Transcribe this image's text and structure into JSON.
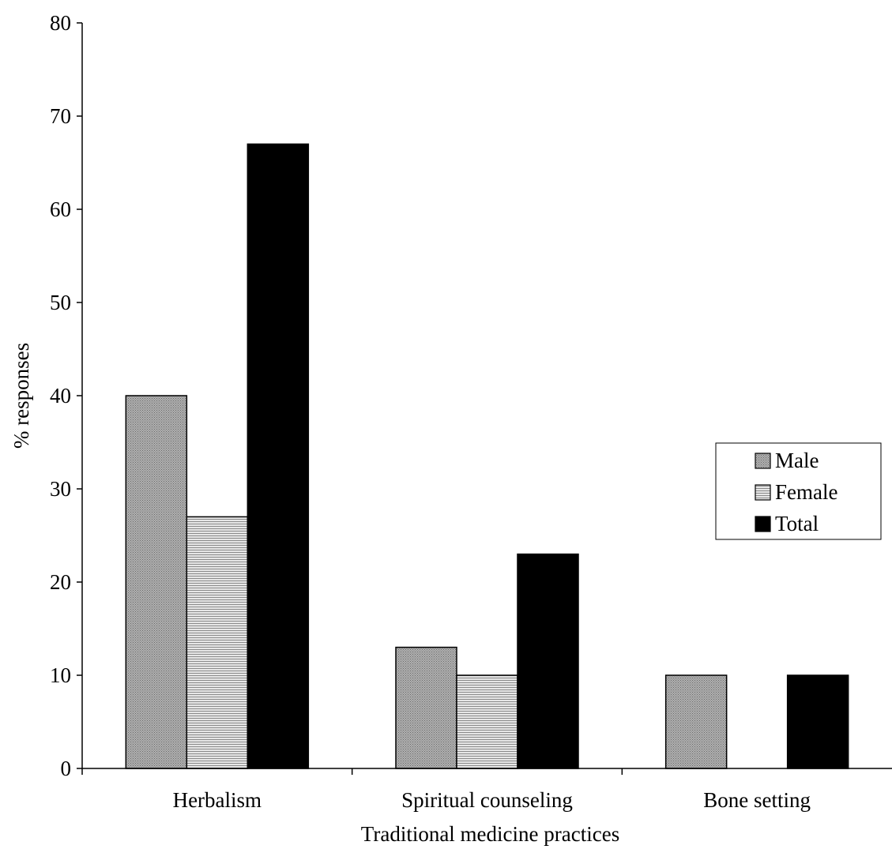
{
  "chart_data": {
    "type": "bar",
    "title": "",
    "xlabel": "Traditional medicine practices",
    "ylabel": "% responses",
    "categories": [
      "Herbalism",
      "Spiritual counseling",
      "Bone setting"
    ],
    "series": [
      {
        "name": "Male",
        "values": [
          40,
          13,
          10
        ],
        "pattern": "dots",
        "color": "#a6a6a6"
      },
      {
        "name": "Female",
        "values": [
          27,
          10,
          0
        ],
        "pattern": "hlines",
        "color": "#c8c8c8"
      },
      {
        "name": "Total",
        "values": [
          67,
          23,
          10
        ],
        "pattern": "solid",
        "color": "#000000"
      }
    ],
    "ylim": [
      0,
      80
    ],
    "yticks": [
      0,
      10,
      20,
      30,
      40,
      50,
      60,
      70,
      80
    ],
    "grid": false,
    "legend_position": "right"
  }
}
